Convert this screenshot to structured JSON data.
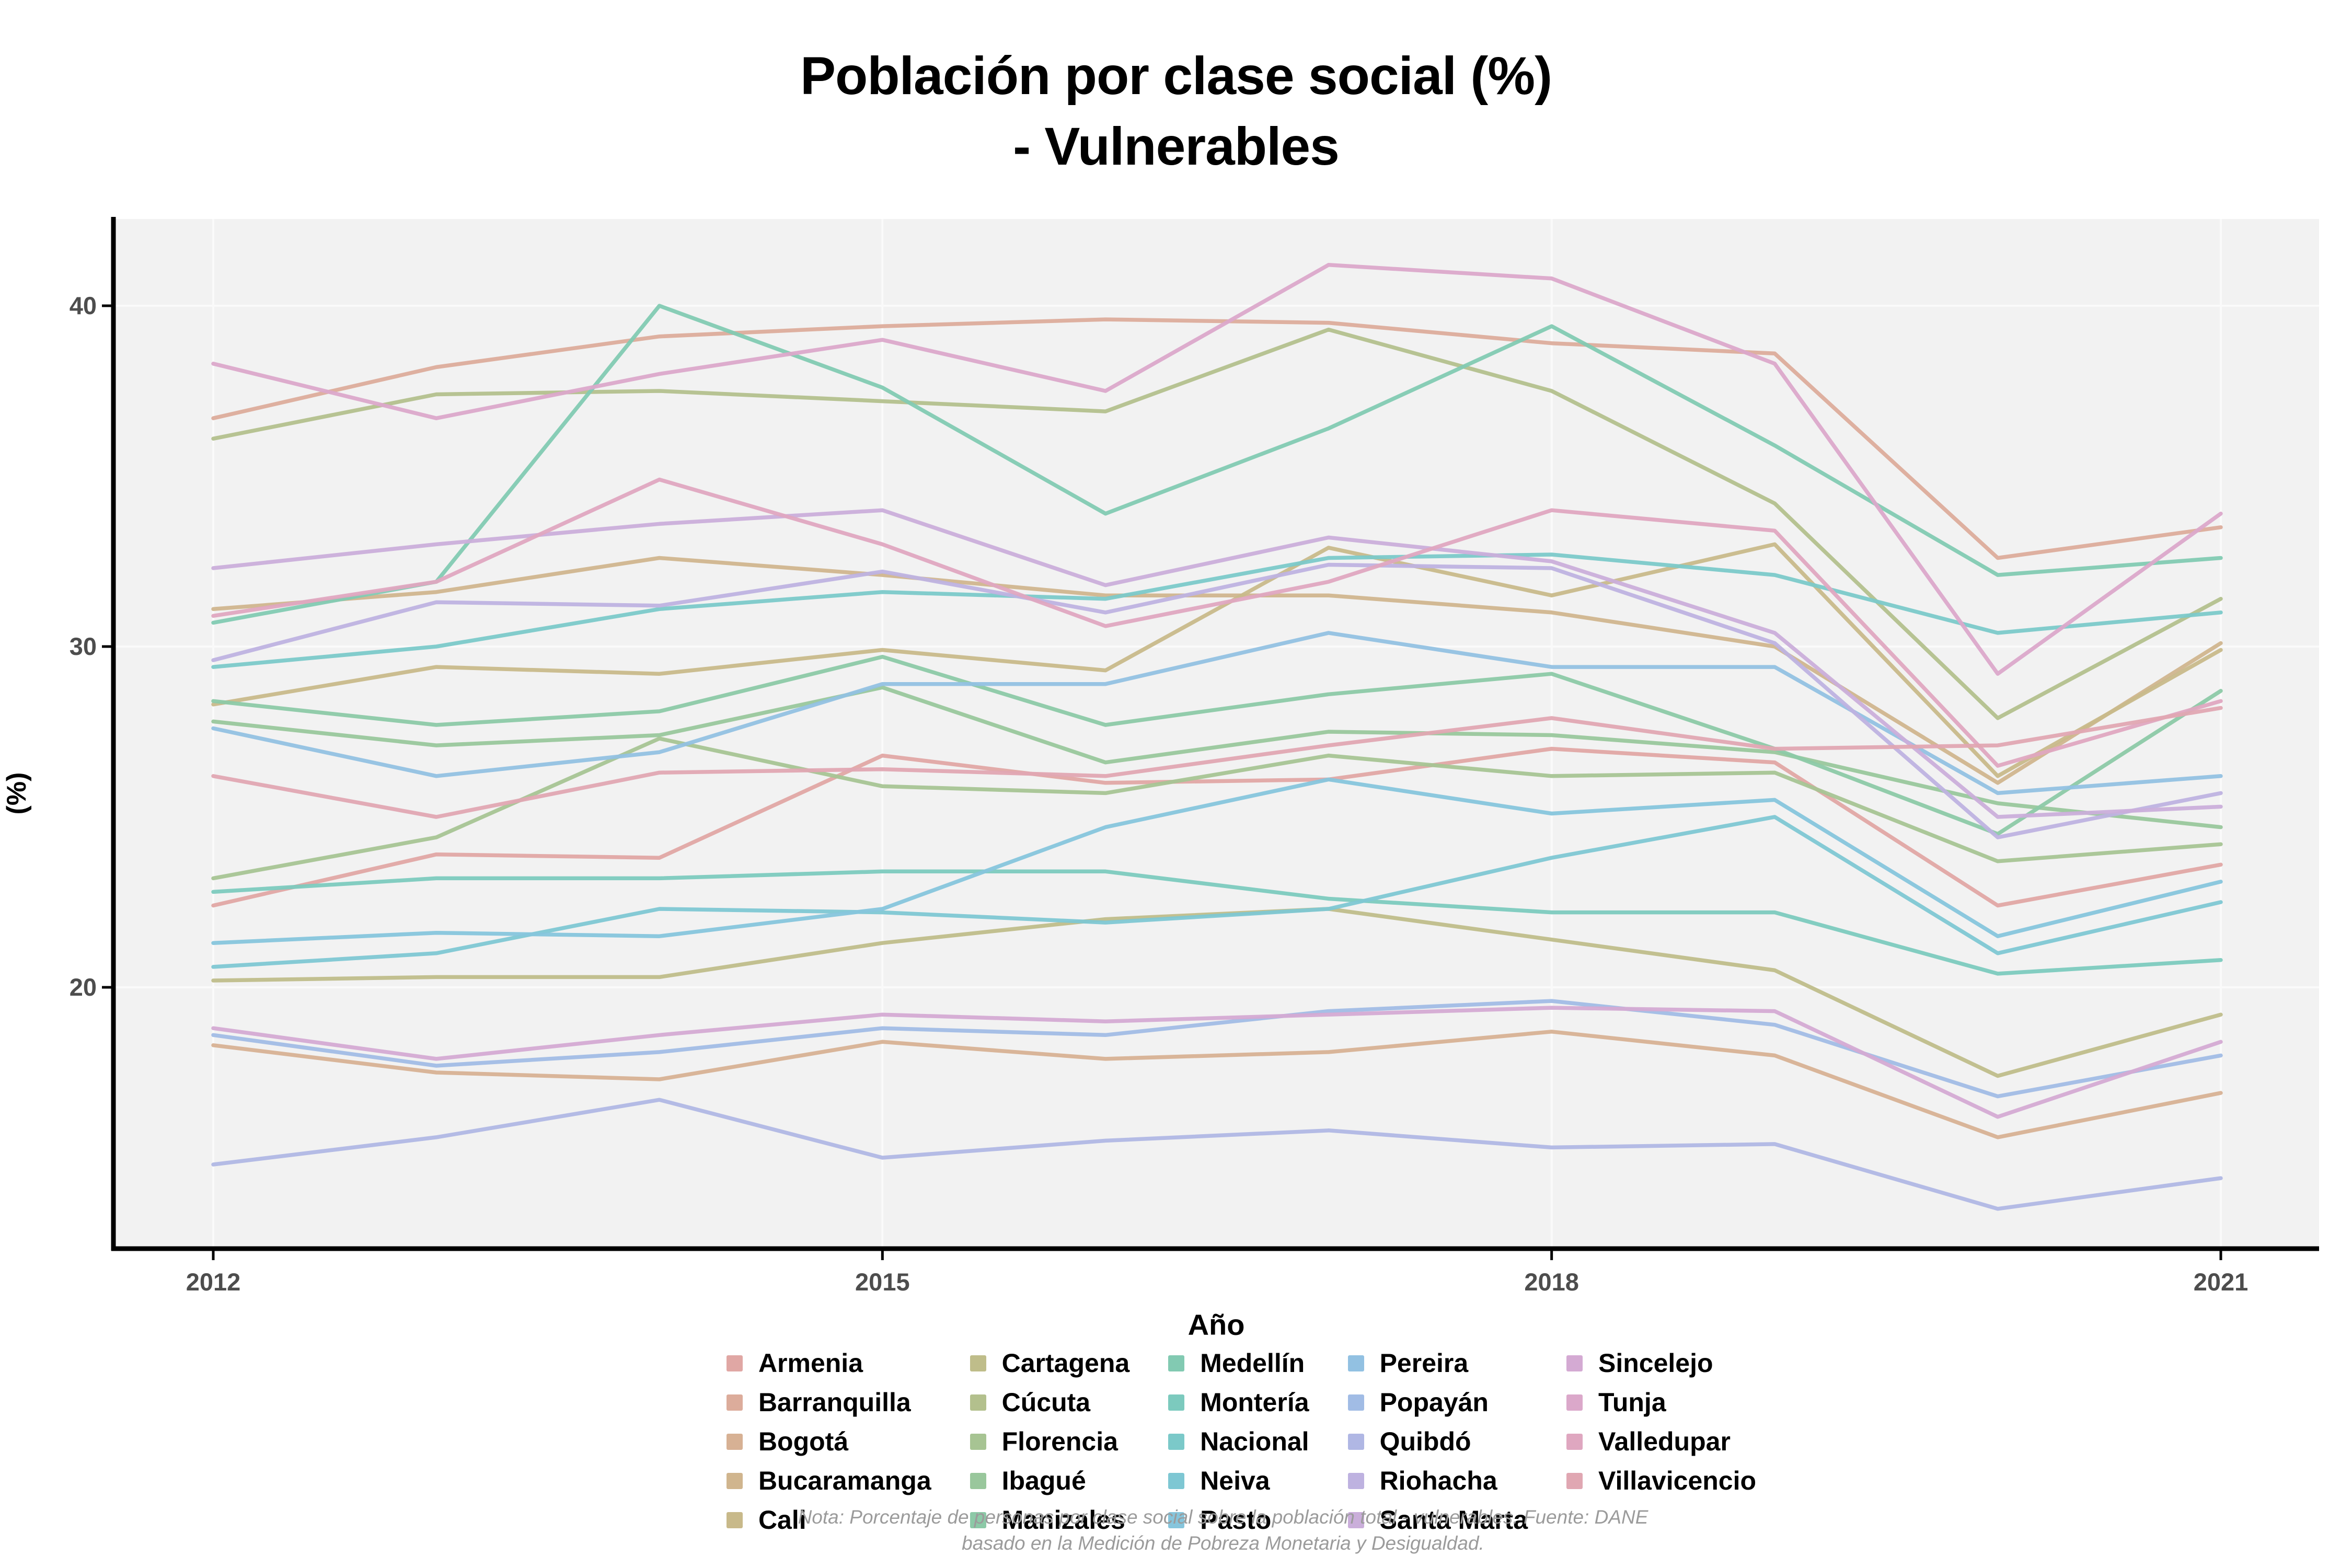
{
  "title": {
    "line1": "Población por clase social (%)",
    "line2": "- Vulnerables"
  },
  "axes": {
    "x_label": "Año",
    "y_label": "(%)",
    "x_ticks": [
      2012,
      2015,
      2018,
      2021
    ],
    "y_ticks": [
      20,
      30,
      40
    ]
  },
  "footnote": {
    "line1": "Nota: Porcentaje de personas por clase social sobre la población total - vulnerables. Fuente: DANE",
    "line2": "basado en la Medición de Pobreza Monetaria y Desigualdad."
  },
  "style": {
    "panel_bg": "#f2f2f2",
    "grid_color": "#fafafa",
    "axis_color": "#000000",
    "tick_label_color": "#4d4d4d"
  },
  "legend": {
    "position": "bottom",
    "columns": 5,
    "rows_per_column": 5
  },
  "chart_data": {
    "type": "line",
    "title": "Población por clase social (%) - Vulnerables",
    "xlabel": "Año",
    "ylabel": "(%)",
    "x": [
      2012,
      2013,
      2014,
      2015,
      2016,
      2017,
      2018,
      2019,
      2020,
      2021
    ],
    "xlim": [
      2011.55,
      2021.45
    ],
    "ylim": [
      12.3,
      42.6
    ],
    "grid": true,
    "legend_position": "bottom",
    "series": [
      {
        "name": "Armenia",
        "color": "#e0a7a4",
        "values": [
          22.4,
          23.9,
          23.8,
          26.8,
          26.0,
          26.1,
          27.0,
          26.6,
          22.4,
          23.6
        ]
      },
      {
        "name": "Barranquilla",
        "color": "#dcac9b",
        "values": [
          36.7,
          38.2,
          39.1,
          39.4,
          39.6,
          39.5,
          38.9,
          38.6,
          32.6,
          33.5
        ]
      },
      {
        "name": "Bogotá",
        "color": "#d7b194",
        "values": [
          18.3,
          17.5,
          17.3,
          18.4,
          17.9,
          18.1,
          18.7,
          18.0,
          15.6,
          16.9
        ]
      },
      {
        "name": "Bucaramanga",
        "color": "#d0b58e",
        "values": [
          31.1,
          31.6,
          32.6,
          32.1,
          31.5,
          31.5,
          31.0,
          30.0,
          26.0,
          30.1
        ]
      },
      {
        "name": "Cali",
        "color": "#c8b98a",
        "values": [
          28.3,
          29.4,
          29.2,
          29.9,
          29.3,
          32.9,
          31.5,
          33.0,
          26.2,
          29.9
        ]
      },
      {
        "name": "Cartagena",
        "color": "#bfbd8a",
        "values": [
          20.2,
          20.3,
          20.3,
          21.3,
          22.0,
          22.3,
          21.4,
          20.5,
          17.4,
          19.2
        ]
      },
      {
        "name": "Cúcuta",
        "color": "#b3c08d",
        "values": [
          36.1,
          37.4,
          37.5,
          37.2,
          36.9,
          39.3,
          37.5,
          34.2,
          27.9,
          31.4
        ]
      },
      {
        "name": "Florencia",
        "color": "#a7c493",
        "values": [
          23.2,
          24.4,
          27.3,
          25.9,
          25.7,
          26.8,
          26.2,
          26.3,
          23.7,
          24.2
        ]
      },
      {
        "name": "Ibagué",
        "color": "#99c79c",
        "values": [
          27.8,
          27.1,
          27.4,
          28.8,
          26.6,
          27.5,
          27.4,
          26.9,
          25.4,
          24.7
        ]
      },
      {
        "name": "Manizales",
        "color": "#8cc9a7",
        "values": [
          28.4,
          27.7,
          28.1,
          29.7,
          27.7,
          28.6,
          29.2,
          27.0,
          24.5,
          28.7
        ]
      },
      {
        "name": "Medellín",
        "color": "#82cab2",
        "values": [
          30.7,
          31.9,
          40.0,
          37.6,
          33.9,
          36.4,
          39.4,
          35.9,
          32.1,
          32.6
        ]
      },
      {
        "name": "Montería",
        "color": "#7ccabe",
        "values": [
          22.8,
          23.2,
          23.2,
          23.4,
          23.4,
          22.6,
          22.2,
          22.2,
          20.4,
          20.8
        ]
      },
      {
        "name": "Nacional",
        "color": "#7bc9c9",
        "values": [
          29.4,
          30.0,
          31.1,
          31.6,
          31.4,
          32.6,
          32.7,
          32.1,
          30.4,
          31.0
        ]
      },
      {
        "name": "Neiva",
        "color": "#7ec7d3",
        "values": [
          20.6,
          21.0,
          22.3,
          22.2,
          21.9,
          22.3,
          23.8,
          25.0,
          21.0,
          22.5
        ]
      },
      {
        "name": "Pasto",
        "color": "#86c5dc",
        "values": [
          21.3,
          21.6,
          21.5,
          22.3,
          24.7,
          26.1,
          25.1,
          25.5,
          21.5,
          23.1
        ]
      },
      {
        "name": "Pereira",
        "color": "#92c1e2",
        "values": [
          27.6,
          26.2,
          26.9,
          28.9,
          28.9,
          30.4,
          29.4,
          29.4,
          25.7,
          26.2
        ]
      },
      {
        "name": "Popayán",
        "color": "#a1bce5",
        "values": [
          18.6,
          17.7,
          18.1,
          18.8,
          18.6,
          19.3,
          19.6,
          18.9,
          16.8,
          18.0
        ]
      },
      {
        "name": "Quibdó",
        "color": "#b0b7e4",
        "values": [
          14.8,
          15.6,
          16.7,
          15.0,
          15.5,
          15.8,
          15.3,
          15.4,
          13.5,
          14.4
        ]
      },
      {
        "name": "Riohacha",
        "color": "#beb2e0",
        "values": [
          29.6,
          31.3,
          31.2,
          32.2,
          31.0,
          32.4,
          32.3,
          30.1,
          24.4,
          25.7
        ]
      },
      {
        "name": "Santa Marta",
        "color": "#caaeda",
        "values": [
          32.3,
          33.0,
          33.6,
          34.0,
          31.8,
          33.2,
          32.5,
          30.4,
          25.0,
          25.3
        ]
      },
      {
        "name": "Sincelejo",
        "color": "#d4aad3",
        "values": [
          18.8,
          17.9,
          18.6,
          19.2,
          19.0,
          19.2,
          19.4,
          19.3,
          16.2,
          18.4
        ]
      },
      {
        "name": "Tunja",
        "color": "#dba8ca",
        "values": [
          38.3,
          36.7,
          38.0,
          39.0,
          37.5,
          41.2,
          40.8,
          38.3,
          29.2,
          33.9
        ]
      },
      {
        "name": "Valledupar",
        "color": "#dfa7c0",
        "values": [
          30.9,
          31.9,
          34.9,
          33.0,
          30.6,
          31.9,
          34.0,
          33.4,
          26.5,
          28.4
        ]
      },
      {
        "name": "Villavicencio",
        "color": "#e0a7b2",
        "values": [
          26.2,
          25.0,
          26.3,
          26.4,
          26.2,
          27.1,
          27.9,
          27.0,
          27.1,
          28.2
        ]
      }
    ]
  }
}
